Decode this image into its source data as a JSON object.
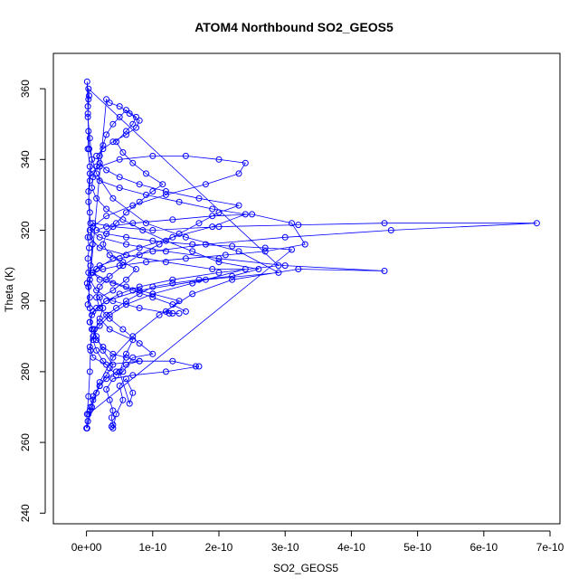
{
  "chart_data": {
    "type": "scatter",
    "title": "ATOM4 Northbound SO2_GEOS5",
    "xlabel": "SO2_GEOS5",
    "ylabel": "Theta (K)",
    "xlim": [
      -5e-11,
      7.15e-10
    ],
    "ylim": [
      237,
      370
    ],
    "x_ticks": [
      {
        "value": 0,
        "label": "0e+00"
      },
      {
        "value": 1e-10,
        "label": "1e-10"
      },
      {
        "value": 2e-10,
        "label": "2e-10"
      },
      {
        "value": 3e-10,
        "label": "3e-10"
      },
      {
        "value": 4e-10,
        "label": "4e-10"
      },
      {
        "value": 5e-10,
        "label": "5e-10"
      },
      {
        "value": 6e-10,
        "label": "6e-10"
      },
      {
        "value": 7e-10,
        "label": "7e-10"
      }
    ],
    "y_ticks": [
      {
        "value": 240,
        "label": "240"
      },
      {
        "value": 260,
        "label": "260"
      },
      {
        "value": 280,
        "label": "280"
      },
      {
        "value": 300,
        "label": "300"
      },
      {
        "value": 320,
        "label": "320"
      },
      {
        "value": 340,
        "label": "340"
      },
      {
        "value": 360,
        "label": "360"
      }
    ],
    "grid": false,
    "marker": "open-circle",
    "connected": true,
    "series": [
      {
        "color": "#0000ff",
        "points": [
          [
            0.0,
            264
          ],
          [
            1e-12,
            268
          ],
          [
            3e-12,
            273
          ],
          [
            5e-12,
            280
          ],
          [
            6e-12,
            286
          ],
          [
            8e-12,
            292
          ],
          [
            5e-12,
            298
          ],
          [
            3e-12,
            304
          ],
          [
            6e-12,
            310
          ],
          [
            9e-12,
            316
          ],
          [
            6e-12,
            322
          ],
          [
            3e-12,
            328
          ],
          [
            5e-12,
            334
          ],
          [
            8e-12,
            340
          ],
          [
            5e-12,
            346
          ],
          [
            2e-12,
            352
          ],
          [
            3e-12,
            357
          ],
          [
            1e-12,
            362
          ],
          [
            2e-12,
            355
          ],
          [
            4e-12,
            343
          ],
          [
            1.5e-11,
            336
          ],
          [
            4e-11,
            329
          ],
          [
            9e-11,
            322
          ],
          [
            1.5e-10,
            318
          ],
          [
            2.3e-10,
            314
          ],
          [
            2.9e-10,
            308
          ],
          [
            1.8e-10,
            306
          ],
          [
            8e-11,
            303
          ],
          [
            3e-11,
            300
          ],
          [
            1e-11,
            297
          ],
          [
            5e-12,
            294
          ],
          [
            1.5e-11,
            290
          ],
          [
            2.5e-11,
            286
          ],
          [
            4e-11,
            282
          ],
          [
            3e-11,
            279
          ],
          [
            2e-11,
            276
          ],
          [
            1e-11,
            273
          ],
          [
            5e-12,
            269
          ],
          [
            2e-12,
            266
          ],
          [
            1e-12,
            264
          ],
          [
            8e-12,
            270
          ],
          [
            2e-11,
            277
          ],
          [
            4e-11,
            284
          ],
          [
            7e-11,
            290
          ],
          [
            1.1e-10,
            296
          ],
          [
            1.6e-10,
            302
          ],
          [
            2.2e-10,
            306
          ],
          [
            3.2e-10,
            309
          ],
          [
            4.5e-10,
            308.5
          ],
          [
            3e-10,
            310
          ],
          [
            2e-10,
            312
          ],
          [
            1.2e-10,
            314
          ],
          [
            6e-11,
            316
          ],
          [
            2e-11,
            318
          ],
          [
            5e-12,
            320
          ],
          [
            1e-11,
            322
          ],
          [
            4e-11,
            321
          ],
          [
            1e-10,
            320
          ],
          [
            2e-10,
            321
          ],
          [
            3.2e-10,
            321.5
          ],
          [
            4.5e-10,
            322
          ],
          [
            6.8e-10,
            322
          ],
          [
            4.6e-10,
            320
          ],
          [
            3e-10,
            318
          ],
          [
            1.8e-10,
            316
          ],
          [
            1e-10,
            314
          ],
          [
            5e-11,
            312
          ],
          [
            2e-11,
            310
          ],
          [
            8e-12,
            308
          ],
          [
            3e-11,
            306
          ],
          [
            6e-11,
            304
          ],
          [
            1e-10,
            302
          ],
          [
            1.4e-10,
            300
          ],
          [
            1.2e-10,
            297
          ],
          [
            1.3e-10,
            296.5
          ],
          [
            1.4e-10,
            296.5
          ],
          [
            1.25e-10,
            296.5
          ],
          [
            8e-11,
            298
          ],
          [
            4e-11,
            300
          ],
          [
            1.5e-11,
            303
          ],
          [
            5e-12,
            306
          ],
          [
            1.5e-11,
            309
          ],
          [
            4e-11,
            312
          ],
          [
            8e-11,
            315
          ],
          [
            1.3e-10,
            318
          ],
          [
            1.9e-10,
            321
          ],
          [
            2.4e-10,
            324.5
          ],
          [
            1.9e-10,
            326
          ],
          [
            1.4e-10,
            328
          ],
          [
            9e-11,
            330
          ],
          [
            5e-11,
            332
          ],
          [
            2e-11,
            334
          ],
          [
            5e-12,
            336
          ],
          [
            2e-11,
            338
          ],
          [
            5e-11,
            340
          ],
          [
            1e-10,
            341
          ],
          [
            1.5e-10,
            341
          ],
          [
            2e-10,
            340
          ],
          [
            2.4e-10,
            339
          ],
          [
            2.3e-10,
            336
          ],
          [
            1.8e-10,
            333
          ],
          [
            1.2e-10,
            330
          ],
          [
            7e-11,
            327
          ],
          [
            3e-11,
            324
          ],
          [
            1e-11,
            321
          ],
          [
            5e-12,
            318
          ],
          [
            2e-11,
            315
          ],
          [
            6e-11,
            313
          ],
          [
            1.2e-10,
            311
          ],
          [
            1.9e-10,
            309
          ],
          [
            2.4e-10,
            309
          ],
          [
            1.6e-10,
            305
          ],
          [
            1e-10,
            302
          ],
          [
            6e-11,
            299
          ],
          [
            3.5e-11,
            296
          ],
          [
            2e-11,
            293
          ],
          [
            1e-11,
            290
          ],
          [
            5e-12,
            287
          ],
          [
            1e-11,
            284
          ],
          [
            3e-11,
            282
          ],
          [
            8e-11,
            283
          ],
          [
            1.3e-10,
            283
          ],
          [
            1.65e-10,
            281.5
          ],
          [
            1.7e-10,
            281.5
          ],
          [
            1.2e-10,
            280
          ],
          [
            7e-11,
            279
          ],
          [
            4e-11,
            278
          ],
          [
            3e-11,
            275
          ],
          [
            3.5e-11,
            272
          ],
          [
            4e-11,
            269
          ],
          [
            3.8e-11,
            267
          ],
          [
            4e-11,
            265
          ],
          [
            3.8e-11,
            264.5
          ],
          [
            4e-11,
            264
          ],
          [
            4.5e-11,
            268
          ],
          [
            5.5e-11,
            272
          ],
          [
            5e-11,
            276
          ],
          [
            6e-11,
            278
          ],
          [
            7e-11,
            274
          ],
          [
            6.5e-11,
            271
          ],
          [
            5e-11,
            280
          ],
          [
            6e-11,
            285
          ],
          [
            7e-11,
            289
          ],
          [
            3.5e-11,
            292
          ],
          [
            2e-11,
            295
          ],
          [
            2.5e-11,
            298
          ],
          [
            2e-11,
            301
          ],
          [
            4e-11,
            303
          ],
          [
            6e-11,
            306
          ],
          [
            7.5e-11,
            309
          ],
          [
            5.5e-11,
            311
          ],
          [
            3.5e-11,
            313
          ],
          [
            2.5e-11,
            316
          ],
          [
            3e-11,
            319
          ],
          [
            4.5e-11,
            322
          ],
          [
            6e-11,
            325
          ],
          [
            8e-11,
            328
          ],
          [
            1e-10,
            331
          ],
          [
            1.15e-10,
            333
          ],
          [
            9e-11,
            336
          ],
          [
            7e-11,
            339
          ],
          [
            5.5e-11,
            342
          ],
          [
            4.5e-11,
            345
          ],
          [
            6e-11,
            348
          ],
          [
            7e-11,
            350
          ],
          [
            7.5e-11,
            352
          ],
          [
            6e-11,
            354
          ],
          [
            5e-11,
            352
          ],
          [
            4e-11,
            350
          ],
          [
            3e-11,
            347
          ],
          [
            2.5e-11,
            344
          ],
          [
            2e-11,
            341
          ],
          [
            1.5e-11,
            338
          ],
          [
            1e-11,
            335
          ],
          [
            8e-12,
            332
          ],
          [
            1.5e-11,
            329
          ],
          [
            3e-11,
            326
          ],
          [
            5.5e-11,
            323
          ],
          [
            8.5e-11,
            320
          ],
          [
            1.2e-10,
            317
          ],
          [
            1.6e-10,
            314
          ],
          [
            2e-10,
            311
          ],
          [
            2.6e-10,
            309
          ],
          [
            2.2e-10,
            307
          ],
          [
            1.7e-10,
            306
          ],
          [
            1.3e-10,
            305
          ],
          [
            1e-10,
            304
          ],
          [
            8e-11,
            302
          ],
          [
            6e-11,
            300
          ],
          [
            4.5e-11,
            298
          ],
          [
            3e-11,
            296
          ],
          [
            2e-11,
            294
          ],
          [
            1.2e-11,
            292
          ],
          [
            1e-11,
            289
          ],
          [
            1.5e-11,
            286
          ],
          [
            2.5e-11,
            283
          ],
          [
            3.5e-11,
            281
          ],
          [
            4.5e-11,
            279
          ],
          [
            5.5e-11,
            280
          ],
          [
            7e-11,
            284
          ],
          [
            1e-10,
            285
          ],
          [
            8e-11,
            288
          ],
          [
            5.5e-11,
            292
          ],
          [
            3.5e-11,
            295
          ],
          [
            2e-11,
            298
          ],
          [
            1.5e-11,
            301
          ],
          [
            2e-11,
            304
          ],
          [
            3.5e-11,
            307
          ],
          [
            5.5e-11,
            310
          ],
          [
            8e-11,
            313
          ],
          [
            1.1e-10,
            316
          ],
          [
            1.4e-10,
            319
          ],
          [
            1.7e-10,
            322
          ],
          [
            2e-10,
            325
          ],
          [
            2.3e-10,
            327
          ],
          [
            1.7e-10,
            329
          ],
          [
            1.2e-10,
            331
          ],
          [
            8e-11,
            333
          ],
          [
            5e-11,
            335
          ],
          [
            3e-11,
            337
          ],
          [
            2e-11,
            339
          ],
          [
            1.5e-11,
            341
          ],
          [
            2.5e-11,
            343
          ],
          [
            4e-11,
            345
          ],
          [
            6e-11,
            347
          ],
          [
            7.5e-11,
            349
          ],
          [
            8e-11,
            351
          ],
          [
            6.5e-11,
            353
          ],
          [
            5e-11,
            355
          ],
          [
            3.5e-11,
            356
          ],
          [
            3e-11,
            357
          ],
          [
            2e-12,
            299
          ],
          [
            5e-12,
            301
          ],
          [
            1e-12,
            305
          ],
          [
            3e-12,
            308
          ],
          [
            2e-12,
            312
          ],
          [
            4e-12,
            315
          ],
          [
            2e-12,
            318
          ],
          [
            5e-12,
            325
          ],
          [
            3e-12,
            331
          ],
          [
            5e-12,
            338
          ],
          [
            2e-12,
            343
          ],
          [
            3e-12,
            348
          ],
          [
            2e-12,
            353
          ],
          [
            4e-12,
            358
          ],
          [
            3e-12,
            360
          ],
          [
            2.9e-10,
            310
          ],
          [
            2e-10,
            308
          ],
          [
            1.3e-10,
            306
          ],
          [
            8e-11,
            304
          ],
          [
            5e-11,
            302
          ],
          [
            3e-11,
            300
          ],
          [
            1.5e-11,
            298
          ],
          [
            8e-12,
            296
          ],
          [
            5e-12,
            294
          ],
          [
            1e-11,
            292
          ],
          [
            1.5e-11,
            289
          ],
          [
            2.5e-11,
            287
          ],
          [
            4e-11,
            285
          ],
          [
            6e-11,
            284
          ],
          [
            8e-11,
            283
          ],
          [
            6e-11,
            282
          ],
          [
            4.5e-11,
            280
          ],
          [
            3e-11,
            278
          ],
          [
            2e-11,
            276
          ],
          [
            1.5e-11,
            274
          ],
          [
            1e-11,
            272
          ],
          [
            6e-12,
            270
          ],
          [
            3e-12,
            268
          ],
          [
            3.1e-10,
            314.5
          ],
          [
            2.7e-10,
            315
          ],
          [
            2.2e-10,
            315.5
          ],
          [
            1.6e-10,
            316
          ],
          [
            1e-10,
            317
          ],
          [
            6e-11,
            318
          ],
          [
            3e-11,
            319
          ],
          [
            1.5e-11,
            320
          ],
          [
            3e-11,
            321
          ],
          [
            7e-11,
            322
          ],
          [
            1.3e-10,
            323
          ],
          [
            1.9e-10,
            324
          ],
          [
            2.5e-10,
            324.5
          ],
          [
            3.1e-10,
            322
          ],
          [
            3.3e-10,
            316
          ],
          [
            2.7e-10,
            314
          ],
          [
            2.1e-10,
            313
          ],
          [
            1.5e-10,
            312
          ],
          [
            9e-11,
            311
          ],
          [
            5e-11,
            310
          ],
          [
            2.5e-11,
            309
          ],
          [
            1e-11,
            308
          ],
          [
            2e-11,
            306
          ],
          [
            4e-11,
            305
          ],
          [
            7e-11,
            303
          ],
          [
            1e-10,
            301
          ],
          [
            1.3e-10,
            299
          ],
          [
            1.5e-10,
            297
          ]
        ]
      }
    ]
  }
}
